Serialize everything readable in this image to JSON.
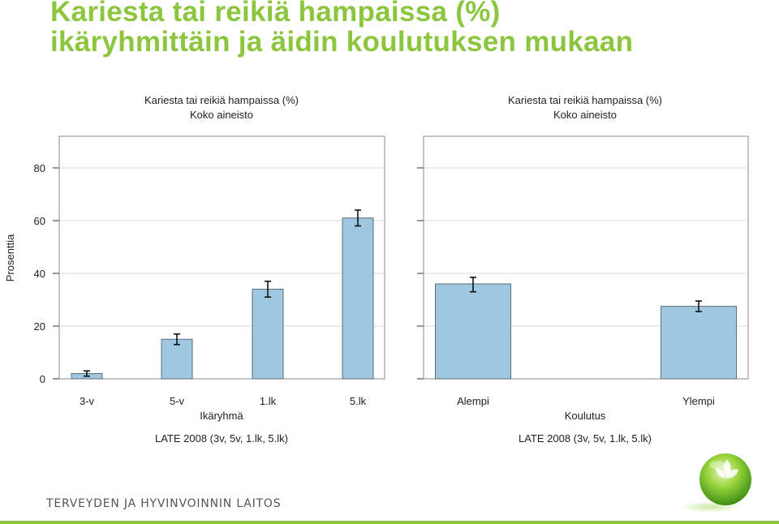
{
  "slide": {
    "title_line1": "Kariesta tai reikiä hampaissa (%)",
    "title_line2": "ikäryhmittäin ja äidin koulutuksen mukaan",
    "footer": "TERVEYDEN JA HYVINVOINNIN LAITOS"
  },
  "colors": {
    "title": "#8cc63f",
    "bar_fill": "#9fc7e0",
    "bar_stroke": "#5a6e7c",
    "grid": "#d9d9d9",
    "footer_line": "#8cc63f"
  },
  "chart_data": [
    {
      "type": "bar",
      "title": "Kariesta tai reikiä hampaissa (%)",
      "subtitle": "Koko aineisto",
      "xlabel": "Ikäryhmä",
      "ylabel": "Prosenttia",
      "note": "LATE 2008 (3v, 5v, 1.lk, 5.lk)",
      "categories": [
        "3-v",
        "5-v",
        "1.lk",
        "5.lk"
      ],
      "values": [
        2,
        15,
        34,
        61
      ],
      "error_low": [
        1,
        13,
        31,
        58
      ],
      "error_high": [
        3,
        17,
        37,
        64
      ],
      "ylim": [
        0,
        92
      ],
      "yticks": [
        0,
        20,
        40,
        60,
        80
      ],
      "grid": true
    },
    {
      "type": "bar",
      "title": "Kariesta tai reikiä hampaissa (%)",
      "subtitle": "Koko aineisto",
      "xlabel": "Koulutus",
      "ylabel": "",
      "note": "LATE 2008 (3v, 5v, 1.lk, 5.lk)",
      "categories": [
        "Alempi",
        "Ylempi"
      ],
      "values": [
        36,
        27.5
      ],
      "error_low": [
        33,
        25.5
      ],
      "error_high": [
        38.5,
        29.5
      ],
      "ylim": [
        0,
        92
      ],
      "yticks": [
        0,
        20,
        40,
        60,
        80
      ],
      "grid": true
    }
  ]
}
